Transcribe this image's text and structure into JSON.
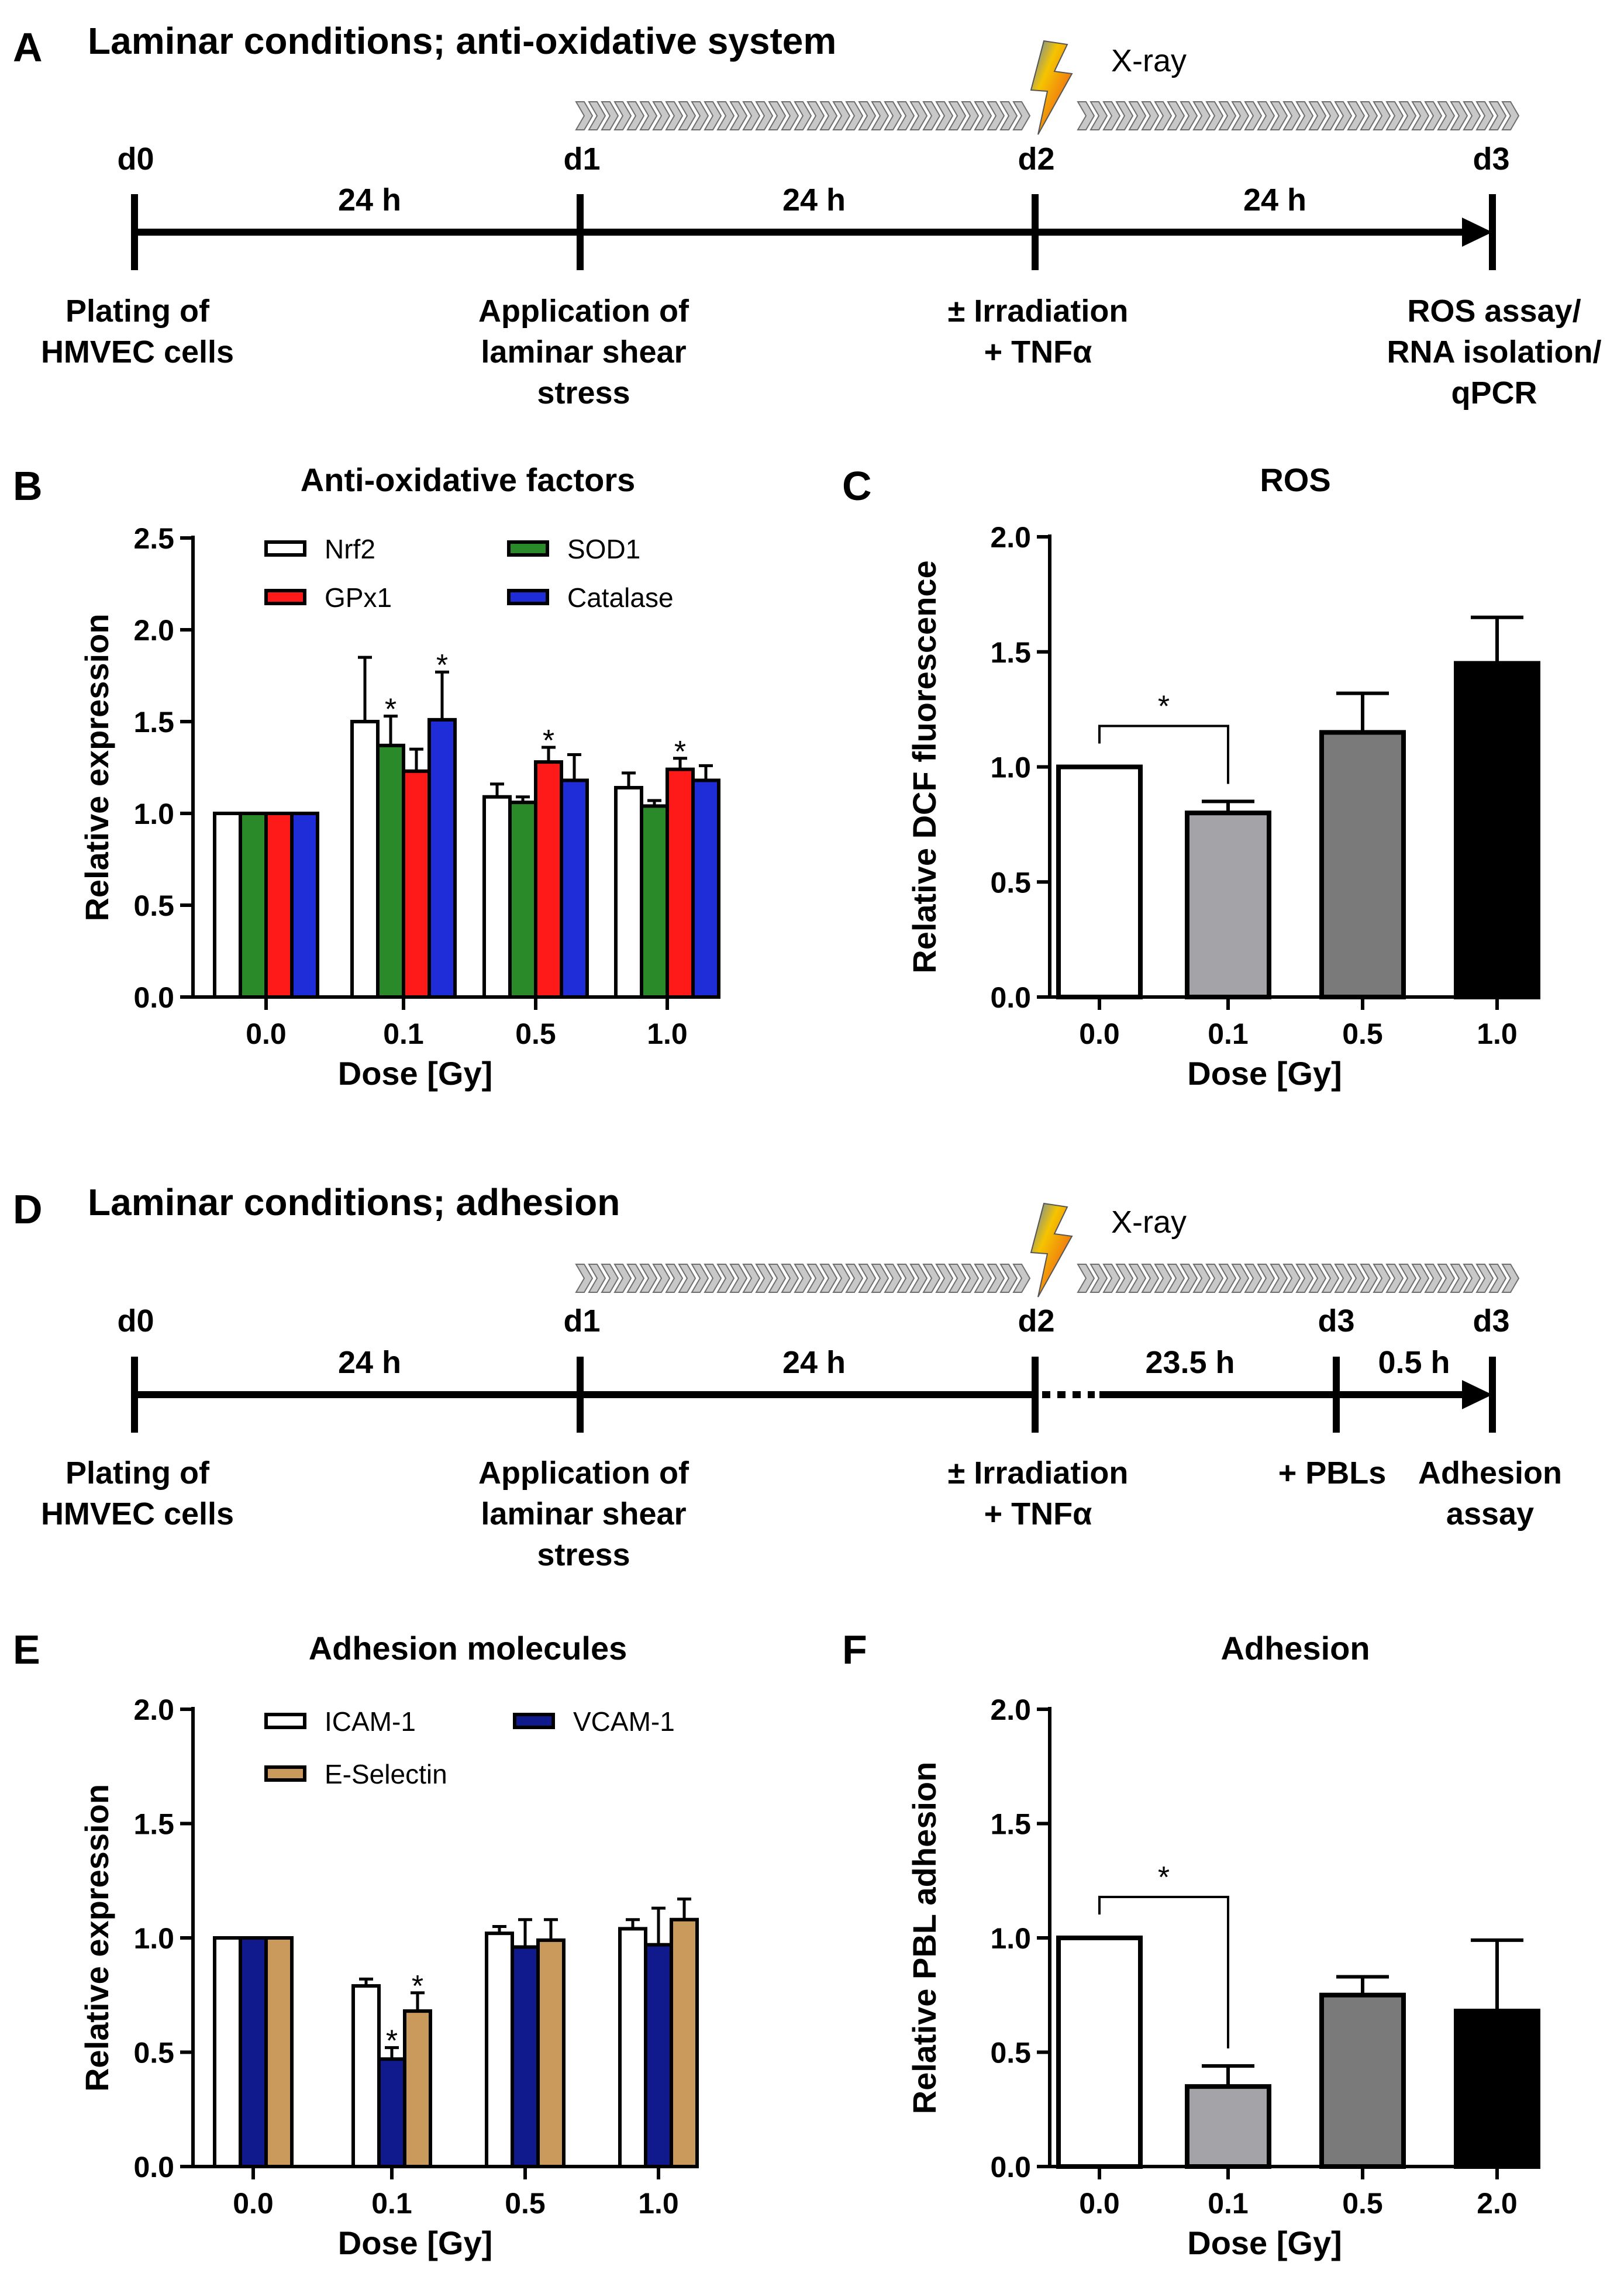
{
  "panels": {
    "A": {
      "letter": "A",
      "title": "Laminar conditions; anti-oxidative system",
      "xray": "X-ray",
      "days": [
        "d0",
        "d1",
        "d2",
        "d3"
      ],
      "durations": [
        "24 h",
        "24 h",
        "24 h"
      ],
      "steps": [
        [
          "Plating of",
          "HMVEC cells"
        ],
        [
          "Application of",
          "laminar shear",
          "stress"
        ],
        [
          "± Irradiation",
          "+ TNFα"
        ],
        [
          "ROS assay/",
          "RNA isolation/",
          "qPCR"
        ]
      ]
    },
    "D": {
      "letter": "D",
      "title": "Laminar conditions; adhesion",
      "xray": "X-ray",
      "days": [
        "d0",
        "d1",
        "d2",
        "d3",
        "d3"
      ],
      "durations": [
        "24 h",
        "24 h",
        "23.5 h",
        "0.5 h"
      ],
      "steps": [
        [
          "Plating of",
          "HMVEC cells"
        ],
        [
          "Application of",
          "laminar shear",
          "stress"
        ],
        [
          "± Irradiation",
          "+ TNFα"
        ],
        [
          "+ PBLs"
        ],
        [
          "Adhesion",
          "assay"
        ]
      ]
    },
    "B": {
      "letter": "B"
    },
    "C": {
      "letter": "C"
    },
    "E": {
      "letter": "E"
    },
    "F": {
      "letter": "F"
    }
  },
  "colors": {
    "white": "#ffffff",
    "green": "#2a8a2a",
    "red": "#ff1a1a",
    "blue": "#1f2dd8",
    "navy": "#101a8c",
    "tan": "#c99a5b",
    "lightgrey": "#a4a4a8",
    "darkgrey": "#7a7a7a",
    "black": "#000000"
  },
  "chart_data": [
    {
      "id": "B",
      "type": "bar",
      "title": "Anti-oxidative factors",
      "xlabel": "Dose [Gy]",
      "ylabel": "Relative expression",
      "categories": [
        "0.0",
        "0.1",
        "0.5",
        "1.0"
      ],
      "ylim": [
        0,
        2.5
      ],
      "yticks": [
        "0.0",
        "0.5",
        "1.0",
        "1.5",
        "2.0",
        "2.5"
      ],
      "legend_position": "top",
      "series": [
        {
          "name": "Nrf2",
          "color": "#ffffff",
          "values": [
            1.0,
            1.5,
            1.09,
            1.14
          ],
          "errors": [
            0,
            0.35,
            0.07,
            0.08
          ]
        },
        {
          "name": "SOD1",
          "color": "#2a8a2a",
          "values": [
            1.0,
            1.37,
            1.06,
            1.04
          ],
          "errors": [
            0,
            0.16,
            0.03,
            0.03
          ]
        },
        {
          "name": "GPx1",
          "color": "#ff1a1a",
          "values": [
            1.0,
            1.23,
            1.28,
            1.24
          ],
          "errors": [
            0,
            0.12,
            0.08,
            0.06
          ]
        },
        {
          "name": "Catalase",
          "color": "#1f2dd8",
          "values": [
            1.0,
            1.51,
            1.18,
            1.18
          ],
          "errors": [
            0,
            0.26,
            0.14,
            0.08
          ]
        }
      ],
      "significance": [
        {
          "category": "0.1",
          "series": "SOD1",
          "label": "*"
        },
        {
          "category": "0.1",
          "series": "Catalase",
          "label": "*"
        },
        {
          "category": "0.5",
          "series": "GPx1",
          "label": "*"
        },
        {
          "category": "1.0",
          "series": "GPx1",
          "label": "*"
        }
      ]
    },
    {
      "id": "C",
      "type": "bar",
      "title": "ROS",
      "xlabel": "Dose [Gy]",
      "ylabel": "Relative DCF fluorescence",
      "categories": [
        "0.0",
        "0.1",
        "0.5",
        "1.0"
      ],
      "ylim": [
        0,
        2.0
      ],
      "yticks": [
        "0.0",
        "0.5",
        "1.0",
        "1.5",
        "2.0"
      ],
      "bar_colors": [
        "#ffffff",
        "#a4a4a8",
        "#7a7a7a",
        "#000000"
      ],
      "values": [
        1.0,
        0.8,
        1.15,
        1.45
      ],
      "errors": [
        0,
        0.05,
        0.17,
        0.2
      ],
      "bracket": {
        "from": "0.0",
        "to": "0.1",
        "label": "*"
      }
    },
    {
      "id": "E",
      "type": "bar",
      "title": "Adhesion molecules",
      "xlabel": "Dose [Gy]",
      "ylabel": "Relative expression",
      "categories": [
        "0.0",
        "0.1",
        "0.5",
        "1.0"
      ],
      "ylim": [
        0,
        2.0
      ],
      "yticks": [
        "0.0",
        "0.5",
        "1.0",
        "1.5",
        "2.0"
      ],
      "legend_position": "top",
      "series": [
        {
          "name": "ICAM-1",
          "color": "#ffffff",
          "values": [
            1.0,
            0.79,
            1.02,
            1.04
          ],
          "errors": [
            0,
            0.03,
            0.03,
            0.04
          ]
        },
        {
          "name": "VCAM-1",
          "color": "#101a8c",
          "values": [
            1.0,
            0.47,
            0.96,
            0.97
          ],
          "errors": [
            0,
            0.05,
            0.12,
            0.16
          ]
        },
        {
          "name": "E-Selectin",
          "color": "#c99a5b",
          "values": [
            1.0,
            0.68,
            0.99,
            1.08
          ],
          "errors": [
            0,
            0.08,
            0.09,
            0.09
          ]
        }
      ],
      "significance": [
        {
          "category": "0.1",
          "series": "VCAM-1",
          "label": "*"
        },
        {
          "category": "0.1",
          "series": "E-Selectin",
          "label": "*"
        }
      ]
    },
    {
      "id": "F",
      "type": "bar",
      "title": "Adhesion",
      "xlabel": "Dose [Gy]",
      "ylabel": "Relative PBL adhesion",
      "categories": [
        "0.0",
        "0.1",
        "0.5",
        "2.0"
      ],
      "ylim": [
        0,
        2.0
      ],
      "yticks": [
        "0.0",
        "0.5",
        "1.0",
        "1.5",
        "2.0"
      ],
      "bar_colors": [
        "#ffffff",
        "#a4a4a8",
        "#7a7a7a",
        "#000000"
      ],
      "values": [
        1.0,
        0.35,
        0.75,
        0.68
      ],
      "errors": [
        0,
        0.09,
        0.08,
        0.31
      ],
      "bracket": {
        "from": "0.0",
        "to": "0.1",
        "label": "*"
      }
    }
  ]
}
